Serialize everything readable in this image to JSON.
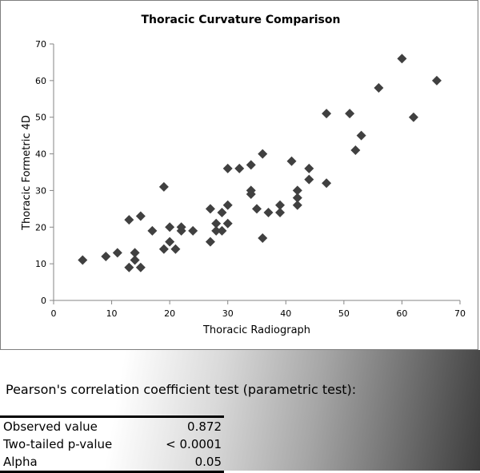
{
  "chart_data": {
    "type": "scatter",
    "title": "Thoracic Curvature Comparison",
    "xlabel": "Thoracic Radiograph",
    "ylabel": "Thoracic Formetric 4D",
    "xlim": [
      0,
      70
    ],
    "ylim": [
      0,
      70
    ],
    "xticks": [
      "0",
      "10",
      "20",
      "30",
      "40",
      "50",
      "60",
      "70"
    ],
    "yticks": [
      "0",
      "10",
      "20",
      "30",
      "40",
      "50",
      "60",
      "70"
    ],
    "grid": false,
    "marker": "diamond",
    "marker_color": "#404040",
    "points": [
      [
        5,
        11
      ],
      [
        9,
        12
      ],
      [
        11,
        13
      ],
      [
        13,
        22
      ],
      [
        13,
        9
      ],
      [
        14,
        13
      ],
      [
        14,
        11
      ],
      [
        15,
        23
      ],
      [
        15,
        9
      ],
      [
        17,
        19
      ],
      [
        19,
        31
      ],
      [
        19,
        14
      ],
      [
        20,
        20
      ],
      [
        20,
        16
      ],
      [
        21,
        14
      ],
      [
        22,
        20
      ],
      [
        22,
        19
      ],
      [
        24,
        19
      ],
      [
        27,
        25
      ],
      [
        27,
        16
      ],
      [
        28,
        19
      ],
      [
        28,
        21
      ],
      [
        29,
        24
      ],
      [
        29,
        19
      ],
      [
        30,
        26
      ],
      [
        30,
        21
      ],
      [
        30,
        36
      ],
      [
        32,
        36
      ],
      [
        34,
        37
      ],
      [
        34,
        30
      ],
      [
        34,
        29
      ],
      [
        35,
        25
      ],
      [
        36,
        40
      ],
      [
        36,
        17
      ],
      [
        37,
        24
      ],
      [
        39,
        26
      ],
      [
        39,
        24
      ],
      [
        41,
        38
      ],
      [
        42,
        30
      ],
      [
        42,
        28
      ],
      [
        42,
        26
      ],
      [
        44,
        36
      ],
      [
        44,
        33
      ],
      [
        47,
        51
      ],
      [
        47,
        32
      ],
      [
        51,
        51
      ],
      [
        52,
        41
      ],
      [
        53,
        45
      ],
      [
        56,
        58
      ],
      [
        60,
        66
      ],
      [
        62,
        50
      ],
      [
        66,
        60
      ]
    ]
  },
  "stats": {
    "test_title": "Pearson's correlation coefficient test (parametric test):",
    "rows": [
      {
        "label": "Observed value",
        "value": "0.872"
      },
      {
        "label": "Two-tailed p-value",
        "value": "< 0.0001"
      },
      {
        "label": "Alpha",
        "value": "0.05"
      }
    ]
  }
}
